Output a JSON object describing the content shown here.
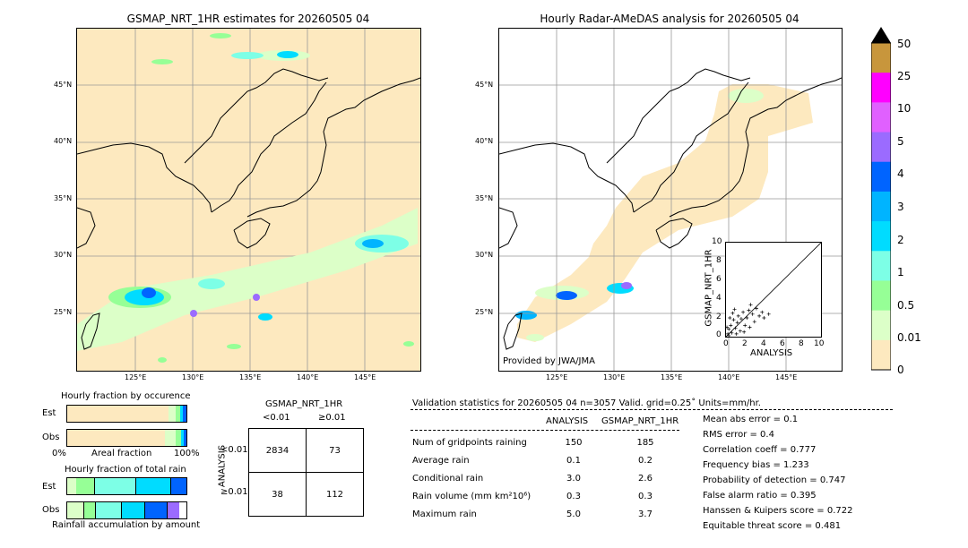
{
  "maps": {
    "left": {
      "title": "GSMAP_NRT_1HR estimates for 20260505 04",
      "lat_labels": [
        "45°N",
        "40°N",
        "35°N",
        "30°N",
        "25°N"
      ],
      "lon_labels": [
        "125°E",
        "130°E",
        "135°E",
        "140°E",
        "145°E"
      ]
    },
    "right": {
      "title": "Hourly Radar-AMeDAS analysis for 20260505 04",
      "lat_labels": [
        "45°N",
        "40°N",
        "35°N",
        "30°N",
        "25°N"
      ],
      "lon_labels": [
        "125°E",
        "130°E",
        "135°E",
        "140°E",
        "145°E"
      ],
      "credit": "Provided by JWA/JMA"
    }
  },
  "colorbar": {
    "labels": [
      "50",
      "25",
      "10",
      "5",
      "4",
      "3",
      "2",
      "1",
      "0.5",
      "0.01",
      "0"
    ],
    "colors": [
      "#c8963c",
      "#ff00ff",
      "#e060ff",
      "#9b6bff",
      "#0064ff",
      "#00b4ff",
      "#00dcff",
      "#7dffe6",
      "#96ff96",
      "#dcffc8",
      "#fde9bf"
    ]
  },
  "inset_scatter": {
    "xlabel": "ANALYSIS",
    "ylabel": "GSMAP_NRT_1HR",
    "ticks": [
      "0",
      "2",
      "4",
      "6",
      "8",
      "10"
    ]
  },
  "occurrence": {
    "title": "Hourly fraction by occurence",
    "rows": [
      "Est",
      "Obs"
    ],
    "axis_left": "0%",
    "axis_mid": "Areal fraction",
    "axis_right": "100%"
  },
  "total_rain": {
    "title": "Hourly fraction of total rain",
    "rows": [
      "Est",
      "Obs"
    ],
    "footer": "Rainfall accumulation by amount"
  },
  "contingency": {
    "title": "GSMAP_NRT_1HR",
    "col_headers": [
      "<0.01",
      "≥0.01"
    ],
    "row_title": "ANALYSIS",
    "row_headers": [
      "<0.01",
      "≥0.01"
    ],
    "cells": [
      [
        "2834",
        "73"
      ],
      [
        "38",
        "112"
      ]
    ]
  },
  "validation": {
    "header": "Validation statistics for 20260505 04  n=3057 Valid. grid=0.25˚ Units=mm/hr.",
    "col_headers": [
      "ANALYSIS",
      "GSMAP_NRT_1HR"
    ],
    "rows": [
      {
        "label": "Num of gridpoints raining",
        "analysis": "150",
        "gsmap": "185"
      },
      {
        "label": "Average rain",
        "analysis": "0.1",
        "gsmap": "0.2"
      },
      {
        "label": "Conditional rain",
        "analysis": "3.0",
        "gsmap": "2.6"
      },
      {
        "label": "Rain volume (mm km²10⁶)",
        "analysis": "0.3",
        "gsmap": "0.3"
      },
      {
        "label": "Maximum rain",
        "analysis": "5.0",
        "gsmap": "3.7"
      }
    ],
    "scores": [
      "Mean abs error =    0.1",
      "RMS error =    0.4",
      "Correlation coeff =  0.777",
      "Frequency bias =  1.233",
      "Probability of detection =  0.747",
      "False alarm ratio =  0.395",
      "Hanssen & Kuipers score =  0.722",
      "Equitable threat score =  0.481"
    ]
  },
  "chart_data": {
    "type": "scatter",
    "xlabel": "ANALYSIS",
    "ylabel": "GSMAP_NRT_1HR",
    "xlim": [
      0,
      10
    ],
    "ylim": [
      0,
      10
    ],
    "points": [
      [
        0.2,
        0.3
      ],
      [
        0.3,
        0.8
      ],
      [
        0.5,
        1.2
      ],
      [
        0.6,
        0.4
      ],
      [
        0.8,
        1.8
      ],
      [
        1.0,
        0.9
      ],
      [
        1.2,
        1.5
      ],
      [
        1.3,
        2.2
      ],
      [
        1.5,
        0.6
      ],
      [
        1.6,
        1.9
      ],
      [
        1.8,
        2.6
      ],
      [
        2.0,
        1.2
      ],
      [
        2.2,
        2.0
      ],
      [
        2.4,
        2.8
      ],
      [
        2.5,
        1.0
      ],
      [
        2.8,
        2.4
      ],
      [
        3.0,
        1.6
      ],
      [
        3.2,
        3.0
      ],
      [
        3.5,
        2.2
      ],
      [
        3.8,
        2.6
      ],
      [
        4.0,
        2.0
      ],
      [
        4.5,
        2.4
      ],
      [
        0.1,
        1.0
      ],
      [
        0.4,
        2.0
      ],
      [
        0.7,
        2.5
      ],
      [
        1.1,
        0.3
      ],
      [
        0.9,
        2.9
      ],
      [
        1.9,
        0.5
      ],
      [
        2.6,
        3.4
      ],
      [
        0.3,
        0.1
      ]
    ]
  }
}
